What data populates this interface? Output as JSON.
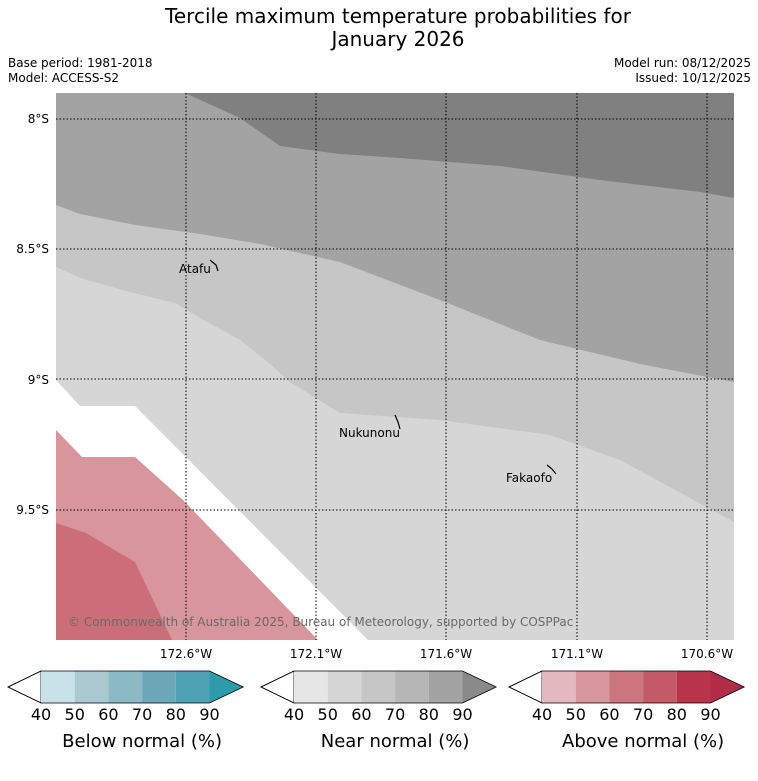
{
  "title": {
    "line1": "Tercile maximum temperature probabilities for",
    "line2": "January 2026"
  },
  "meta": {
    "base_period": "Base period: 1981-2018",
    "model": "Model: ACCESS-S2",
    "model_run": "Model run: 08/12/2025",
    "issued": "Issued: 10/12/2025"
  },
  "map": {
    "lat_ticks": [
      "8°S",
      "8.5°S",
      "9°S",
      "9.5°S"
    ],
    "lon_ticks": [
      "172.6°W",
      "172.1°W",
      "171.6°W",
      "171.1°W",
      "170.6°W"
    ],
    "places": [
      "Atafu",
      "Nukunonu",
      "Fakaofo"
    ],
    "copyright": "© Commonwealth of Australia 2025, Bureau of Meteorology, supported by COSPPac"
  },
  "colorbars": [
    {
      "name": "Below normal (%)",
      "ticks": [
        "40",
        "50",
        "60",
        "70",
        "80",
        "90"
      ],
      "colors": [
        "#c8e2e8",
        "#a9c8cf",
        "#8bb9c4",
        "#6ca9b8",
        "#4da2b3",
        "#2e9bab"
      ]
    },
    {
      "name": "Near normal (%)",
      "ticks": [
        "40",
        "50",
        "60",
        "70",
        "80",
        "90"
      ],
      "colors": [
        "#e6e6e6",
        "#d6d6d6",
        "#c6c6c6",
        "#b6b6b6",
        "#a3a3a3",
        "#8a8a8a"
      ]
    },
    {
      "name": "Above normal (%)",
      "ticks": [
        "40",
        "50",
        "60",
        "70",
        "80",
        "90"
      ],
      "colors": [
        "#e3b9bf",
        "#d8959c",
        "#cc757f",
        "#c45a67",
        "#b7344a",
        "#b02d47"
      ]
    }
  ]
}
